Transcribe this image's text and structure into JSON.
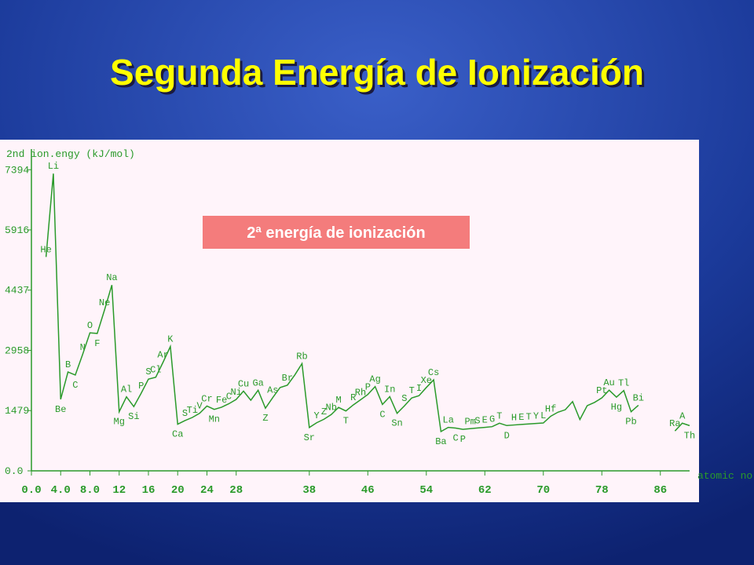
{
  "title": "Segunda Energía de Ionización",
  "chart_data": {
    "type": "line",
    "y_label": "2nd ion.engy (kJ/mol)",
    "x_label": "atomic no",
    "annotation": "2ª energía de ionización",
    "color": "#2a9a2a",
    "x": [
      1,
      2,
      3,
      4,
      5,
      6,
      7,
      8,
      9,
      10,
      11,
      12,
      13,
      14,
      15,
      16,
      17,
      18,
      19,
      20,
      21,
      22,
      23,
      24,
      25,
      26,
      27,
      28,
      29,
      30,
      31,
      32,
      33,
      34,
      35,
      36,
      37,
      38,
      39,
      40,
      41,
      42,
      43,
      44,
      45,
      46,
      47,
      48,
      49,
      50,
      51,
      52,
      53,
      54,
      55,
      56,
      57,
      58,
      59,
      60,
      61,
      62,
      63,
      64,
      65,
      66,
      67,
      68,
      69,
      70,
      71,
      72,
      73,
      74,
      75,
      76,
      77,
      78,
      79,
      80,
      81,
      82,
      83,
      84,
      85,
      86,
      87,
      88,
      89,
      90
    ],
    "values": [
      null,
      5251,
      7298,
      1757,
      2427,
      2353,
      2856,
      3388,
      3374,
      3952,
      4562,
      1451,
      1817,
      1577,
      1903,
      2252,
      2298,
      2666,
      3052,
      1145,
      1235,
      1310,
      1414,
      1591,
      1509,
      1562,
      1648,
      1753,
      1958,
      1733,
      1979,
      1537,
      1798,
      2045,
      2103,
      2350,
      2633,
      1064,
      1180,
      1267,
      1382,
      1558,
      1470,
      1617,
      1744,
      1875,
      2070,
      1631,
      1821,
      1412,
      1595,
      1790,
      1845,
      2046,
      2234,
      965,
      1067,
      1050,
      1018,
      1035,
      1052,
      1068,
      1085,
      1170,
      1112,
      1126,
      1139,
      1151,
      1163,
      1175,
      1340,
      1440,
      1500,
      1700,
      1260,
      1600,
      1680,
      1791,
      1980,
      1810,
      1971,
      1450,
      1610,
      null,
      null,
      null,
      null,
      979,
      1170,
      1110
    ],
    "labels": [
      null,
      "He",
      "Li",
      "Be",
      "B",
      "C",
      "N",
      "O",
      "F",
      "Ne",
      "Na",
      "Mg",
      "Al",
      "Si",
      "P",
      "S",
      "Cl",
      "Ar",
      "K",
      "Ca",
      "S",
      "Ti",
      "V",
      "Cr",
      "Mn",
      "Fe",
      "C",
      "Ni",
      "Cu",
      null,
      "Ga",
      "Z",
      "As",
      null,
      "Br",
      null,
      "Rb",
      "Sr",
      "Y",
      "Z",
      "Nb",
      "M",
      "T",
      "R",
      "Rh",
      "P",
      "Ag",
      "C",
      "In",
      "Sn",
      "S",
      "T",
      "I",
      "Xe",
      "Cs",
      "Ba",
      "La",
      "C",
      "P",
      "Pm",
      "S",
      "E",
      "G",
      "T",
      "D",
      "H",
      "E",
      "T",
      "Y",
      "L",
      "Hf",
      null,
      null,
      null,
      null,
      null,
      null,
      "Pt",
      "Au",
      "Hg",
      "Tl",
      "Pb",
      "Bi",
      null,
      null,
      null,
      null,
      "Ra",
      "A",
      "Th"
    ],
    "xlim": [
      0,
      90
    ],
    "ylim": [
      0,
      7900
    ],
    "xticks": [
      {
        "value": 0,
        "label": "0.0"
      },
      {
        "value": 4,
        "label": "4.0"
      },
      {
        "value": 8,
        "label": "8.0"
      },
      12,
      16,
      20,
      24,
      28,
      38,
      46,
      54,
      62,
      70,
      78,
      86
    ],
    "yticks": [
      {
        "value": 0,
        "label": "0.0"
      },
      1479,
      2958,
      4437,
      5916,
      7394
    ]
  }
}
